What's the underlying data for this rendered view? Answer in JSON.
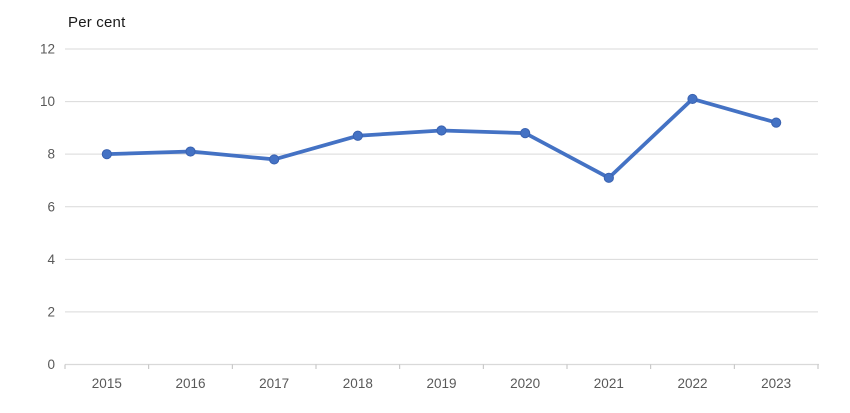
{
  "chart": {
    "title": "Per cent"
  },
  "chart_data": {
    "type": "line",
    "title": "Per cent",
    "xlabel": "",
    "ylabel": "Per cent",
    "categories": [
      "2015",
      "2016",
      "2017",
      "2018",
      "2019",
      "2020",
      "2021",
      "2022",
      "2023"
    ],
    "series": [
      {
        "name": "Per cent",
        "values": [
          8.0,
          8.1,
          7.8,
          8.7,
          8.9,
          8.8,
          7.1,
          10.1,
          9.2
        ]
      }
    ],
    "ylim": [
      0,
      12
    ],
    "yticks": [
      0,
      2,
      4,
      6,
      8,
      10,
      12
    ],
    "grid": true,
    "legend_position": "none",
    "colors": {
      "line": "#4472C4",
      "marker": "#4472C4",
      "marker_border": "#3A62B0",
      "gridline": "#D9D9D9",
      "axis_line": "#D9D9D9",
      "tick": "#BFBFBF",
      "axis_text": "#595959",
      "title_text": "#1a1a1a"
    }
  }
}
